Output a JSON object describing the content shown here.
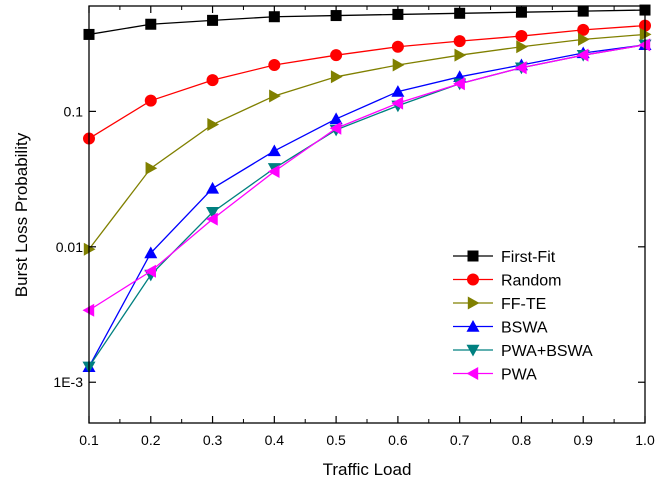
{
  "chart_data": {
    "type": "line",
    "title": "",
    "xlabel": "Traffic Load",
    "ylabel": "Burst Loss Probability",
    "xlim": [
      0.1,
      1.0
    ],
    "ylim": [
      0.0005,
      0.6
    ],
    "yscale": "log",
    "xticks": [
      "0.1",
      "0.2",
      "0.3",
      "0.4",
      "0.5",
      "0.6",
      "0.7",
      "0.8",
      "0.9",
      "1.0"
    ],
    "yticks": [
      {
        "value": 0.001,
        "label": "1E-3"
      },
      {
        "value": 0.01,
        "label": "0.01"
      },
      {
        "value": 0.1,
        "label": "0.1"
      }
    ],
    "grid": false,
    "legend_position": "lower-right",
    "x": [
      0.1,
      0.2,
      0.3,
      0.4,
      0.5,
      0.6,
      0.7,
      0.8,
      0.9,
      1.0
    ],
    "series": [
      {
        "name": "First-Fit",
        "color": "#000000",
        "marker": "square",
        "values": [
          0.37,
          0.44,
          0.47,
          0.5,
          0.51,
          0.52,
          0.53,
          0.54,
          0.55,
          0.56
        ]
      },
      {
        "name": "Random",
        "color": "#ff0000",
        "marker": "circle",
        "values": [
          0.063,
          0.12,
          0.17,
          0.22,
          0.26,
          0.3,
          0.33,
          0.36,
          0.4,
          0.43
        ]
      },
      {
        "name": "FF-TE",
        "color": "#808000",
        "marker": "triangle-right",
        "values": [
          0.0096,
          0.038,
          0.08,
          0.13,
          0.18,
          0.22,
          0.26,
          0.3,
          0.34,
          0.37
        ]
      },
      {
        "name": "BSWA",
        "color": "#0000ff",
        "marker": "triangle-up",
        "values": [
          0.0013,
          0.009,
          0.027,
          0.051,
          0.088,
          0.14,
          0.18,
          0.22,
          0.27,
          0.31
        ]
      },
      {
        "name": "PWA+BSWA",
        "color": "#008080",
        "marker": "triangle-down",
        "values": [
          0.0013,
          0.0062,
          0.018,
          0.038,
          0.073,
          0.11,
          0.16,
          0.21,
          0.26,
          0.31
        ]
      },
      {
        "name": "PWA",
        "color": "#ff00ff",
        "marker": "triangle-left",
        "values": [
          0.0034,
          0.0066,
          0.016,
          0.036,
          0.075,
          0.115,
          0.16,
          0.21,
          0.26,
          0.31
        ]
      }
    ]
  }
}
